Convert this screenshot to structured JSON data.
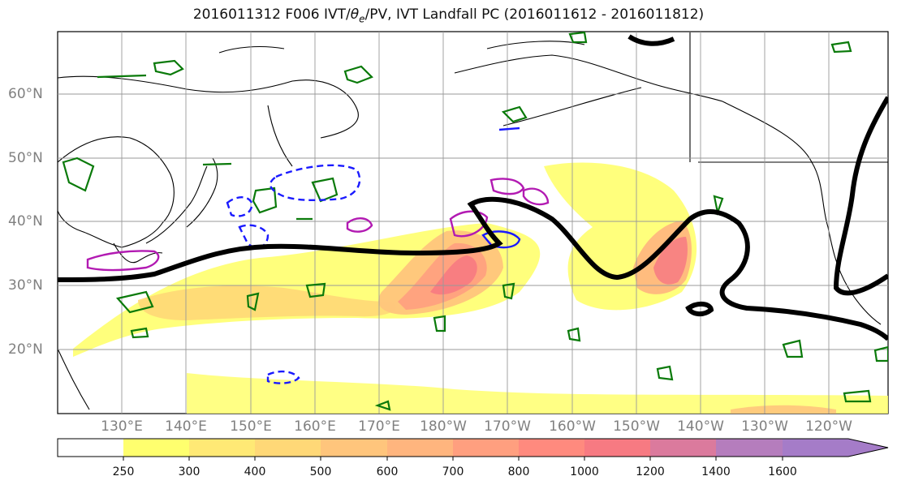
{
  "title": {
    "prefix": "2016011312 F006 IVT/",
    "theta": "θ",
    "sub": "e",
    "suffix": "/PV, IVT Landfall PC (2016011612 - 2016011812)"
  },
  "latitude_labels": [
    "60°N",
    "50°N",
    "40°N",
    "30°N",
    "20°N"
  ],
  "longitude_labels": [
    "130°E",
    "140°E",
    "150°E",
    "160°E",
    "170°E",
    "180°W",
    "170°W",
    "160°W",
    "150°W",
    "140°W",
    "130°W",
    "120°W"
  ],
  "colorbar": {
    "ticks": [
      "250",
      "300",
      "400",
      "500",
      "600",
      "700",
      "800",
      "1000",
      "1200",
      "1400",
      "1600"
    ],
    "colors": [
      "#ffffff",
      "#ffff6e",
      "#ffe975",
      "#ffd877",
      "#ffc57c",
      "#ffb57e",
      "#ff9f7f",
      "#ff8a7e",
      "#f77a82",
      "#db7a9d",
      "#b57dbd",
      "#a57cc8"
    ]
  },
  "legend_colors": {
    "contour_black": "#000000",
    "contour_green": "#0a7a0a",
    "contour_blue": "#1a1aff",
    "contour_magenta": "#b21ab2"
  }
}
